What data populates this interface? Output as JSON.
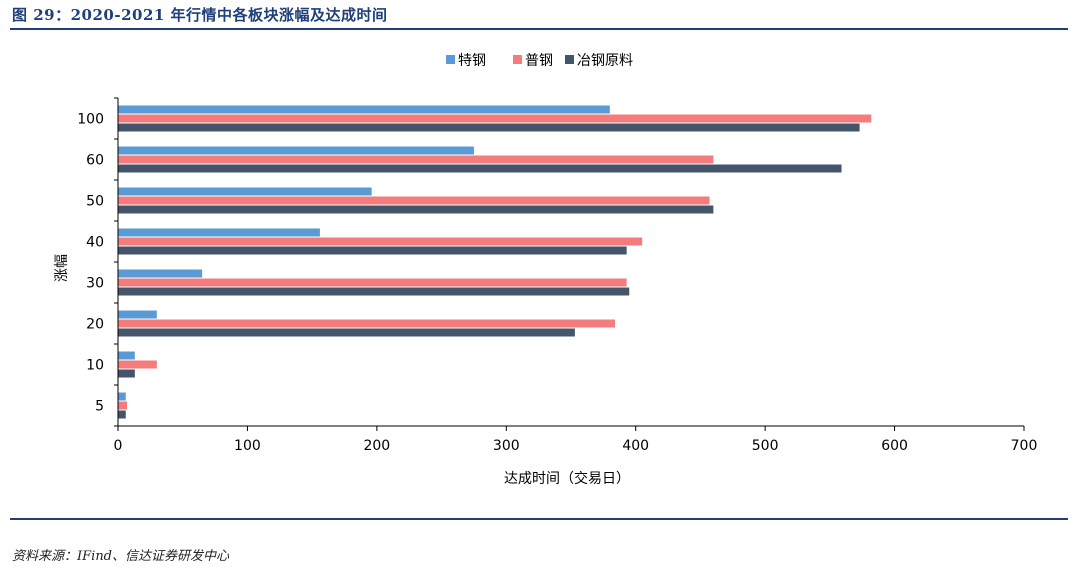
{
  "figure_title": "图 29：2020-2021 年行情中各板块涨幅及达成时间",
  "source": "资料来源：IFind、信达证券研发中心",
  "chart_data": {
    "type": "bar",
    "orientation": "horizontal",
    "categories": [
      "100",
      "60",
      "50",
      "40",
      "30",
      "20",
      "10",
      "5"
    ],
    "series": [
      {
        "name": "特钢",
        "color": "#5b9bd5",
        "values": [
          380,
          275,
          196,
          156,
          65,
          30,
          13,
          6
        ]
      },
      {
        "name": "普钢",
        "color": "#f47c7c",
        "values": [
          582,
          460,
          457,
          405,
          393,
          384,
          30,
          7
        ]
      },
      {
        "name": "冶钢原料",
        "color": "#44546a",
        "values": [
          573,
          559,
          460,
          393,
          395,
          353,
          13,
          6
        ]
      }
    ],
    "xlabel": "达成时间（交易日）",
    "ylabel": "涨幅",
    "xlim": [
      0,
      700
    ],
    "xticks": [
      0,
      100,
      200,
      300,
      400,
      500,
      600,
      700
    ],
    "grid": false,
    "legend_position": "top"
  }
}
